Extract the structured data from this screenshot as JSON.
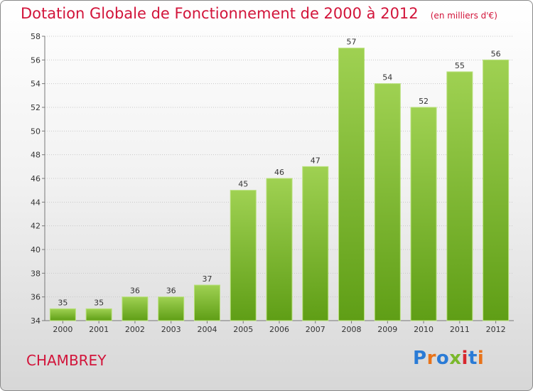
{
  "header": {
    "title": "Dotation Globale de Fonctionnement de 2000 à 2012",
    "subtitle": "(en milliers d'€)"
  },
  "footer": {
    "commune": "CHAMBREY",
    "brand": "Proxiti"
  },
  "colors": {
    "title": "#d2143a",
    "bar_top": "#9fd152",
    "bar_bottom": "#5f9e16",
    "axis_text": "#333333",
    "grid": "#c8c8c8"
  },
  "chart_data": {
    "type": "bar",
    "title": "Dotation Globale de Fonctionnement de 2000 à 2012",
    "subtitle": "(en milliers d'€)",
    "categories": [
      "2000",
      "2001",
      "2002",
      "2003",
      "2004",
      "2005",
      "2006",
      "2007",
      "2008",
      "2009",
      "2010",
      "2011",
      "2012"
    ],
    "values": [
      35,
      35,
      36,
      36,
      37,
      45,
      46,
      47,
      57,
      54,
      52,
      55,
      56
    ],
    "ylim": [
      34,
      58
    ],
    "yticks": [
      34,
      36,
      38,
      40,
      42,
      44,
      46,
      48,
      50,
      52,
      54,
      56,
      58
    ],
    "grid": true,
    "xlabel": "",
    "ylabel": ""
  }
}
